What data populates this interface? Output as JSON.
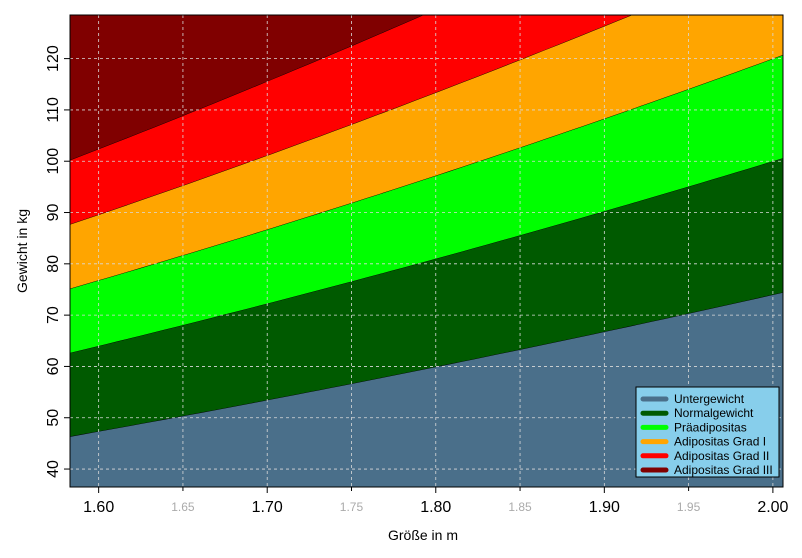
{
  "chart_data": {
    "type": "area",
    "title": "",
    "xlabel": "Größe  in m",
    "ylabel": "Gewicht  in kg",
    "xlim": [
      1.583,
      2.006
    ],
    "ylim": [
      36.5,
      128.5
    ],
    "x_ticks_major": [
      "1.60",
      "1.70",
      "1.80",
      "1.90",
      "2.00"
    ],
    "x_ticks_minor": [
      "1.65",
      "1.75",
      "1.85",
      "1.95"
    ],
    "y_ticks": [
      "40",
      "50",
      "60",
      "70",
      "80",
      "90",
      "100",
      "110",
      "120"
    ],
    "grid": true,
    "legend_position": "bottom-right",
    "legend_bg": "#87ceeb",
    "bands": [
      {
        "name": "Untergewicht",
        "bmi_min": 0,
        "bmi_max": 18.5,
        "color": "#4a6f8a"
      },
      {
        "name": "Normalgewicht",
        "bmi_min": 18.5,
        "bmi_max": 25,
        "color": "#005a00"
      },
      {
        "name": "Präadipositas",
        "bmi_min": 25,
        "bmi_max": 30,
        "color": "#00ff00"
      },
      {
        "name": "Adipositas Grad I",
        "bmi_min": 30,
        "bmi_max": 35,
        "color": "#ffa500"
      },
      {
        "name": "Adipositas Grad II",
        "bmi_min": 35,
        "bmi_max": 40,
        "color": "#ff0000"
      },
      {
        "name": "Adipositas Grad III",
        "bmi_min": 40,
        "bmi_max": null,
        "color": "#800000"
      }
    ]
  }
}
